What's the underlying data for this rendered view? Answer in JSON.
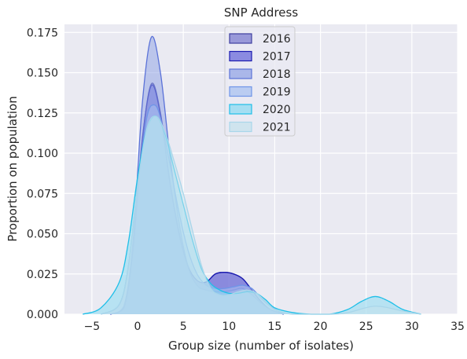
{
  "chart_data": {
    "type": "area",
    "title": "SNP Address",
    "xlabel": "Group size (number of isolates)",
    "ylabel": "Proportion on population",
    "xlim": [
      -8,
      35
    ],
    "ylim": [
      0,
      0.18
    ],
    "xticks": [
      -5,
      0,
      5,
      10,
      15,
      20,
      25,
      30,
      35
    ],
    "yticks": [
      0.0,
      0.025,
      0.05,
      0.075,
      0.1,
      0.125,
      0.15,
      0.175
    ],
    "grid": true,
    "legend_position": "top-center",
    "series": [
      {
        "name": "2016",
        "color": "#3e3fa0",
        "fill": "#7d7ed0",
        "points": [
          [
            -3,
            0
          ],
          [
            -1.5,
            0.004
          ],
          [
            -0.5,
            0.04
          ],
          [
            0.5,
            0.107
          ],
          [
            1.5,
            0.143
          ],
          [
            2.5,
            0.125
          ],
          [
            3.5,
            0.084
          ],
          [
            4.5,
            0.052
          ],
          [
            5.5,
            0.03
          ],
          [
            6.5,
            0.021
          ],
          [
            7.5,
            0.02
          ],
          [
            8.5,
            0.025
          ],
          [
            9.5,
            0.026
          ],
          [
            10.5,
            0.025
          ],
          [
            11.5,
            0.022
          ],
          [
            12.5,
            0.015
          ],
          [
            13.5,
            0.008
          ],
          [
            14.5,
            0.003
          ],
          [
            16,
            0
          ]
        ]
      },
      {
        "name": "2017",
        "color": "#1a1ab0",
        "fill": "#6b6bdb",
        "points": [
          [
            -3,
            0
          ],
          [
            -1.5,
            0.004
          ],
          [
            -0.5,
            0.041
          ],
          [
            0.5,
            0.108
          ],
          [
            1.5,
            0.142
          ],
          [
            2.5,
            0.124
          ],
          [
            3.5,
            0.083
          ],
          [
            4.5,
            0.051
          ],
          [
            5.5,
            0.03
          ],
          [
            6.5,
            0.021
          ],
          [
            7.5,
            0.02
          ],
          [
            8.5,
            0.025
          ],
          [
            9.5,
            0.026
          ],
          [
            10.5,
            0.025
          ],
          [
            11.5,
            0.022
          ],
          [
            12.5,
            0.015
          ],
          [
            13.5,
            0.008
          ],
          [
            14.5,
            0.003
          ],
          [
            16,
            0
          ]
        ]
      },
      {
        "name": "2018",
        "color": "#5b72d8",
        "fill": "#94a6e6",
        "points": [
          [
            -3,
            0
          ],
          [
            -1.5,
            0.005
          ],
          [
            -0.5,
            0.045
          ],
          [
            0.5,
            0.13
          ],
          [
            1.5,
            0.172
          ],
          [
            2.5,
            0.15
          ],
          [
            3.5,
            0.1
          ],
          [
            4.5,
            0.058
          ],
          [
            5.5,
            0.03
          ],
          [
            6.5,
            0.018
          ],
          [
            7.5,
            0.015
          ],
          [
            8.5,
            0.014
          ],
          [
            9.5,
            0.014
          ],
          [
            10.5,
            0.015
          ],
          [
            11.5,
            0.016
          ],
          [
            12.5,
            0.012
          ],
          [
            13.5,
            0.007
          ],
          [
            14.5,
            0.003
          ],
          [
            16,
            0
          ]
        ]
      },
      {
        "name": "2019",
        "color": "#6f95e8",
        "fill": "#a9c1f0",
        "points": [
          [
            -4,
            0
          ],
          [
            -2,
            0.006
          ],
          [
            -1,
            0.03
          ],
          [
            0,
            0.08
          ],
          [
            1,
            0.122
          ],
          [
            1.8,
            0.13
          ],
          [
            2.5,
            0.122
          ],
          [
            3.5,
            0.094
          ],
          [
            4.5,
            0.064
          ],
          [
            5.5,
            0.04
          ],
          [
            6.5,
            0.025
          ],
          [
            7.5,
            0.018
          ],
          [
            8.5,
            0.016
          ],
          [
            9.5,
            0.016
          ],
          [
            10.5,
            0.017
          ],
          [
            11.5,
            0.018
          ],
          [
            12.5,
            0.016
          ],
          [
            13.5,
            0.01
          ],
          [
            14.5,
            0.005
          ],
          [
            16,
            0
          ]
        ]
      },
      {
        "name": "2020",
        "color": "#1fbfe8",
        "fill": "#8ddaf2",
        "points": [
          [
            -6,
            0
          ],
          [
            -4,
            0.004
          ],
          [
            -2,
            0.02
          ],
          [
            -1,
            0.045
          ],
          [
            0,
            0.085
          ],
          [
            1,
            0.115
          ],
          [
            2,
            0.123
          ],
          [
            3,
            0.112
          ],
          [
            4,
            0.09
          ],
          [
            5,
            0.068
          ],
          [
            6,
            0.046
          ],
          [
            7,
            0.028
          ],
          [
            8,
            0.019
          ],
          [
            9,
            0.015
          ],
          [
            10,
            0.013
          ],
          [
            11,
            0.013
          ],
          [
            12,
            0.014
          ],
          [
            13,
            0.013
          ],
          [
            14,
            0.009
          ],
          [
            15,
            0.004
          ],
          [
            17,
            0.001
          ],
          [
            19,
            0
          ],
          [
            21,
            0
          ],
          [
            23,
            0.003
          ],
          [
            24.5,
            0.008
          ],
          [
            26,
            0.011
          ],
          [
            27.5,
            0.008
          ],
          [
            29,
            0.003
          ],
          [
            31,
            0
          ]
        ]
      },
      {
        "name": "2021",
        "color": "#a9d6ea",
        "fill": "#c6e1ec",
        "points": [
          [
            -4,
            0
          ],
          [
            -2,
            0.006
          ],
          [
            -1,
            0.03
          ],
          [
            0,
            0.08
          ],
          [
            1,
            0.115
          ],
          [
            2,
            0.123
          ],
          [
            3,
            0.113
          ],
          [
            4,
            0.095
          ],
          [
            5,
            0.075
          ],
          [
            6,
            0.052
          ],
          [
            7,
            0.03
          ],
          [
            8,
            0.016
          ],
          [
            9,
            0.012
          ],
          [
            10,
            0.012
          ],
          [
            11,
            0.014
          ],
          [
            12,
            0.015
          ],
          [
            13,
            0.013
          ],
          [
            14,
            0.008
          ],
          [
            15,
            0.003
          ],
          [
            17,
            0
          ],
          [
            21,
            0
          ],
          [
            23,
            0.001
          ],
          [
            26,
            0.005
          ],
          [
            29,
            0.002
          ],
          [
            31,
            0
          ]
        ]
      }
    ]
  }
}
